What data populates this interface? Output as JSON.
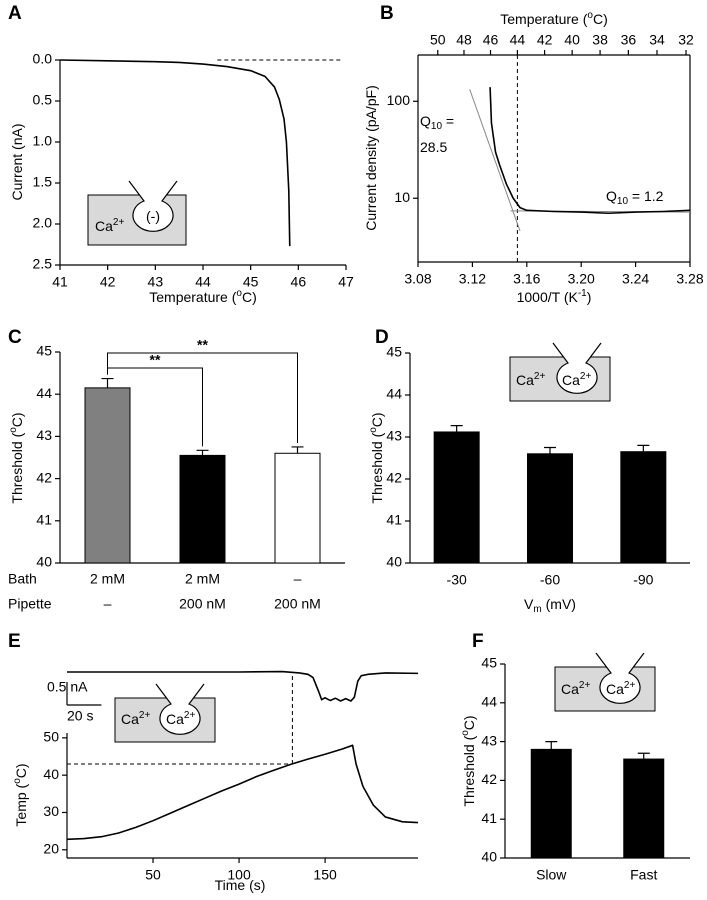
{
  "chart_data": [
    {
      "panel": "A",
      "type": "line",
      "x": [
        41,
        42,
        43,
        43.5,
        44,
        44.5,
        45,
        45.3,
        45.5,
        45.6,
        45.7,
        45.75,
        45.8,
        45.82
      ],
      "values": [
        0,
        0.01,
        0.02,
        0.03,
        0.05,
        0.08,
        0.13,
        0.2,
        0.33,
        0.48,
        0.72,
        1.0,
        1.6,
        2.27
      ],
      "color": "#000000",
      "xlabel": [
        {
          "text": "Temperature ("
        },
        {
          "text": "o",
          "shift": "sup"
        },
        {
          "text": "C)"
        }
      ],
      "ylabel": [
        {
          "text": "Current (nA)"
        }
      ],
      "xlim": [
        41,
        47
      ],
      "ylim": [
        0,
        2.5
      ],
      "y_inverted": true,
      "xticks": [
        41,
        42,
        43,
        44,
        45,
        46,
        47
      ],
      "yticks": [
        {
          "value": 0,
          "label": "0.0"
        },
        0.5,
        {
          "value": 1,
          "label": "1.0"
        },
        1.5,
        {
          "value": 2,
          "label": "2.0"
        },
        2.5
      ],
      "reference_line": {
        "y": 0,
        "x": [
          44.3,
          46.9
        ]
      },
      "inset": [
        [
          {
            "text": "Ca"
          },
          {
            "text": "2+",
            "shift": "sup"
          }
        ],
        [
          {
            "text": "(-)"
          }
        ]
      ]
    },
    {
      "panel": "B",
      "type": "line",
      "x": [
        3.133,
        3.134,
        3.137,
        3.14,
        3.145,
        3.15,
        3.155,
        3.16,
        3.18,
        3.2,
        3.22,
        3.24,
        3.26,
        3.28
      ],
      "values": [
        140,
        60,
        30,
        22,
        14,
        10,
        8,
        7.5,
        7.3,
        7.2,
        7.0,
        7.2,
        7.3,
        7.5
      ],
      "color": "#000000",
      "fits": [
        {
          "x": [
            3.118,
            3.155
          ],
          "values": [
            133,
            4.6
          ],
          "color": "#888888"
        },
        {
          "x": [
            3.148,
            3.28
          ],
          "values": [
            7.4,
            7.2
          ],
          "color": "#888888"
        }
      ],
      "ylog": true,
      "xlim": [
        3.08,
        3.28
      ],
      "ylim": [
        2.2,
        300
      ],
      "xticks": [
        3.08,
        3.12,
        3.16,
        {
          "value": 3.2,
          "label": "3.20"
        },
        3.24,
        3.28
      ],
      "yticks": [
        10,
        100
      ],
      "x2label": [
        {
          "text": "Temperature ("
        },
        {
          "text": "o",
          "shift": "sup"
        },
        {
          "text": "C)"
        }
      ],
      "x2ticks": [
        50,
        48,
        46,
        44,
        42,
        40,
        38,
        36,
        34,
        32
      ],
      "vline_x2": 44,
      "xlabel": [
        {
          "text": "1000/T (K"
        },
        {
          "text": "-1",
          "shift": "sup"
        },
        {
          "text": ")"
        }
      ],
      "ylabel": [
        {
          "text": "Current density (pA/pF)"
        }
      ],
      "annotations": [
        [
          {
            "text": "Q"
          },
          {
            "text": "10",
            "shift": "sub"
          },
          {
            "text": " ="
          }
        ],
        [
          {
            "text": "28.5"
          }
        ],
        [
          {
            "text": "Q"
          },
          {
            "text": "10",
            "shift": "sub"
          },
          {
            "text": " = 1.2"
          }
        ]
      ]
    },
    {
      "panel": "C",
      "type": "bar",
      "values": [
        44.15,
        42.55,
        42.6
      ],
      "errors": [
        0.22,
        0.12,
        0.15
      ],
      "colors": [
        "#808080",
        "#000000",
        "#ffffff"
      ],
      "category_rows": [
        {
          "label": "Bath",
          "values": [
            "2 mM",
            "2 mM",
            "–"
          ]
        },
        {
          "label": "Pipette",
          "values": [
            "–",
            "200 nM",
            "200 nM"
          ]
        }
      ],
      "ylabel": [
        {
          "text": "Threshold ("
        },
        {
          "text": "o",
          "shift": "sup"
        },
        {
          "text": "C)"
        }
      ],
      "ylim": [
        40,
        45
      ],
      "yticks": [
        40,
        41,
        42,
        43,
        44,
        45
      ],
      "significance": [
        "**",
        "**"
      ]
    },
    {
      "panel": "D",
      "type": "bar",
      "categories": [
        "-30",
        "-60",
        "-90"
      ],
      "values": [
        43.12,
        42.6,
        42.65
      ],
      "errors": [
        0.15,
        0.15,
        0.15
      ],
      "colors": [
        "#000000",
        "#000000",
        "#000000"
      ],
      "xlabel": [
        {
          "text": "V"
        },
        {
          "text": "m",
          "shift": "sub"
        },
        {
          "text": " (mV)"
        }
      ],
      "ylabel": [
        {
          "text": "Threshold ("
        },
        {
          "text": "o",
          "shift": "sup"
        },
        {
          "text": "C)"
        }
      ],
      "ylim": [
        40,
        45
      ],
      "yticks": [
        40,
        41,
        42,
        43,
        44,
        45
      ],
      "inset": [
        [
          {
            "text": "Ca"
          },
          {
            "text": "2+",
            "shift": "sup"
          }
        ],
        [
          {
            "text": "Ca"
          },
          {
            "text": "2+",
            "shift": "sup"
          }
        ]
      ]
    },
    {
      "panel": "E",
      "type": "line",
      "x": [
        0,
        10,
        20,
        30,
        40,
        50,
        60,
        70,
        80,
        90,
        100,
        110,
        120,
        130,
        140,
        150,
        160,
        166,
        168,
        172,
        178,
        185,
        195,
        204
      ],
      "values": [
        22.8,
        23,
        23.5,
        24.5,
        26,
        27.8,
        29.8,
        31.8,
        33.8,
        35.8,
        37.6,
        39.6,
        41.3,
        42.9,
        44.3,
        45.6,
        47,
        48,
        43,
        37,
        32,
        28.8,
        27.5,
        27.3
      ],
      "color": "#000000",
      "xlim": [
        0,
        204
      ],
      "ylim": [
        17.8,
        51.3
      ],
      "xticks": [
        50,
        100,
        150
      ],
      "yticks": [
        20,
        30,
        40,
        50
      ],
      "xlabel": [
        {
          "text": "Time (s)"
        }
      ],
      "ylabel": [
        {
          "text": "Temp ("
        },
        {
          "text": "o",
          "shift": "sup"
        },
        {
          "text": "C)"
        }
      ],
      "current_trace": {
        "x": [
          0,
          50,
          100,
          125,
          135,
          140,
          143,
          146,
          148,
          150,
          153,
          156,
          159,
          162,
          165,
          167,
          169,
          171,
          175,
          185,
          204
        ],
        "values": [
          0,
          0,
          0,
          0.01,
          -0.02,
          -0.05,
          -0.12,
          -0.4,
          -0.6,
          -0.56,
          -0.62,
          -0.57,
          -0.63,
          -0.58,
          -0.63,
          -0.55,
          -0.2,
          -0.08,
          -0.05,
          -0.02,
          -0.03
        ]
      },
      "scalebar": {
        "y": 0.5,
        "y_label": "0.5 nA",
        "x": 20,
        "x_label": "20 s"
      },
      "threshold": {
        "x": 131,
        "y": 43
      },
      "inset": [
        [
          {
            "text": "Ca"
          },
          {
            "text": "2+",
            "shift": "sup"
          }
        ],
        [
          {
            "text": "Ca"
          },
          {
            "text": "2+",
            "shift": "sup"
          }
        ]
      ]
    },
    {
      "panel": "F",
      "type": "bar",
      "categories": [
        "Slow",
        "Fast"
      ],
      "values": [
        42.8,
        42.55
      ],
      "errors": [
        0.2,
        0.15
      ],
      "colors": [
        "#000000",
        "#000000"
      ],
      "ylabel": [
        {
          "text": "Threshold ("
        },
        {
          "text": "o",
          "shift": "sup"
        },
        {
          "text": "C)"
        }
      ],
      "ylim": [
        40,
        45
      ],
      "yticks": [
        40,
        41,
        42,
        43,
        44,
        45
      ],
      "inset": [
        [
          {
            "text": "Ca"
          },
          {
            "text": "2+",
            "shift": "sup"
          }
        ],
        [
          {
            "text": "Ca"
          },
          {
            "text": "2+",
            "shift": "sup"
          }
        ]
      ]
    }
  ]
}
